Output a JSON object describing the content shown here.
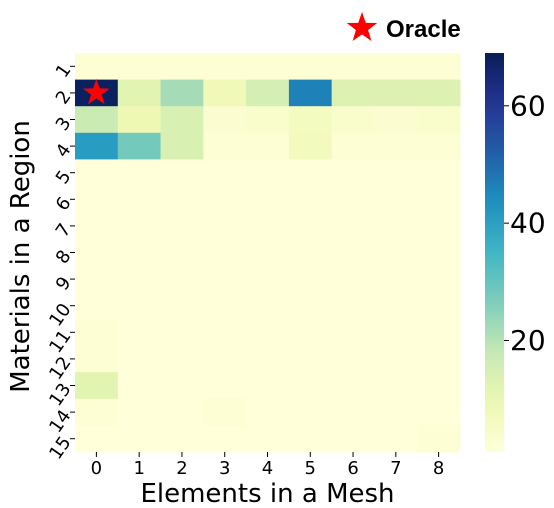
{
  "chart_data": {
    "type": "heatmap",
    "xlabel": "Elements in a Mesh",
    "ylabel": "Materials in a Region",
    "x_categories": [
      "0",
      "1",
      "2",
      "3",
      "4",
      "5",
      "6",
      "7",
      "8"
    ],
    "y_categories": [
      "1",
      "2",
      "3",
      "4",
      "5",
      "6",
      "7",
      "8",
      "9",
      "10",
      "11",
      "12",
      "13",
      "14",
      "15"
    ],
    "values": [
      [
        2,
        2,
        2,
        2,
        2,
        2,
        2,
        2,
        2
      ],
      [
        68,
        12,
        22,
        8,
        15,
        46,
        13,
        13,
        13
      ],
      [
        17,
        9,
        14,
        3,
        4,
        6,
        4,
        3,
        4
      ],
      [
        41,
        28,
        14,
        2,
        2,
        7,
        2,
        2,
        2
      ],
      [
        1,
        1,
        1,
        1,
        1,
        1,
        1,
        1,
        1
      ],
      [
        1,
        1,
        1,
        1,
        1,
        1,
        1,
        1,
        1
      ],
      [
        1,
        1,
        1,
        1,
        1,
        1,
        1,
        1,
        1
      ],
      [
        1,
        1,
        1,
        1,
        1,
        1,
        1,
        1,
        1
      ],
      [
        1,
        1,
        1,
        1,
        1,
        1,
        1,
        1,
        1
      ],
      [
        1,
        1,
        1,
        1,
        1,
        1,
        1,
        1,
        1
      ],
      [
        2,
        1,
        1,
        1,
        1,
        1,
        1,
        1,
        1
      ],
      [
        2,
        1,
        1,
        1,
        1,
        1,
        1,
        1,
        1
      ],
      [
        12,
        1,
        1,
        1,
        1,
        1,
        1,
        1,
        1
      ],
      [
        2,
        1,
        1,
        2,
        1,
        1,
        1,
        1,
        1
      ],
      [
        1,
        1,
        1,
        1,
        1,
        1,
        1,
        1,
        2
      ]
    ],
    "colorbar": {
      "colormap": "YlGnBu",
      "range": [
        1,
        69
      ],
      "ticks": [
        20,
        40,
        60
      ]
    },
    "marker": {
      "label": "Oracle",
      "x": "0",
      "y": "2",
      "color": "#ff0000"
    }
  }
}
